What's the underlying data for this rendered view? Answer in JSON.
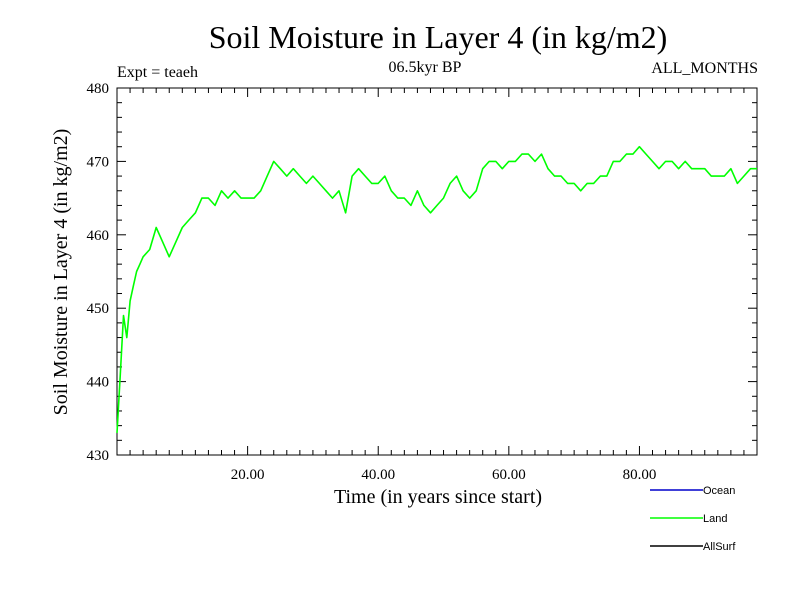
{
  "chart_data": {
    "type": "line",
    "title": "Soil Moisture in Layer 4 (in kg/m2)",
    "subtitle": "06.5kyr BP",
    "experiment_label": "Expt = teaeh",
    "period_label": "ALL_MONTHS",
    "xlabel": "Time (in years since start)",
    "ylabel": "Soil Moisture in Layer 4 (in kg/m2)",
    "xlim": [
      0,
      98
    ],
    "ylim": [
      430,
      480
    ],
    "x_ticks": [
      20,
      40,
      60,
      80
    ],
    "x_tick_labels": [
      "20.00",
      "40.00",
      "60.00",
      "80.00"
    ],
    "y_ticks": [
      430,
      440,
      450,
      460,
      470,
      480
    ],
    "y_tick_labels": [
      "430",
      "440",
      "450",
      "460",
      "470",
      "480"
    ],
    "legend": [
      {
        "name": "Ocean",
        "color": "#0000cc"
      },
      {
        "name": "Land",
        "color": "#00ff00"
      },
      {
        "name": "AllSurf",
        "color": "#000000"
      }
    ],
    "series": [
      {
        "name": "Land",
        "color": "#00ff00",
        "x": [
          0,
          0.5,
          1,
          1.5,
          2,
          2.5,
          3,
          3.5,
          4,
          5,
          6,
          7,
          8,
          9,
          10,
          11,
          12,
          13,
          14,
          15,
          16,
          17,
          18,
          19,
          20,
          21,
          22,
          23,
          24,
          25,
          26,
          27,
          28,
          29,
          30,
          31,
          32,
          33,
          34,
          35,
          36,
          37,
          38,
          39,
          40,
          41,
          42,
          43,
          44,
          45,
          46,
          47,
          48,
          49,
          50,
          51,
          52,
          53,
          54,
          55,
          56,
          57,
          58,
          59,
          60,
          61,
          62,
          63,
          64,
          65,
          66,
          67,
          68,
          69,
          70,
          71,
          72,
          73,
          74,
          75,
          76,
          77,
          78,
          79,
          80,
          81,
          82,
          83,
          84,
          85,
          86,
          87,
          88,
          89,
          90,
          91,
          92,
          93,
          94,
          95,
          96,
          97,
          98
        ],
        "values": [
          433,
          441,
          449,
          446,
          451,
          453,
          455,
          456,
          457,
          458,
          461,
          459,
          457,
          459,
          461,
          462,
          463,
          465,
          465,
          464,
          466,
          465,
          466,
          465,
          465,
          465,
          466,
          468,
          470,
          469,
          468,
          469,
          468,
          467,
          468,
          467,
          466,
          465,
          466,
          463,
          468,
          469,
          468,
          467,
          467,
          468,
          466,
          465,
          465,
          464,
          466,
          464,
          463,
          464,
          465,
          467,
          468,
          466,
          465,
          466,
          469,
          470,
          470,
          469,
          470,
          470,
          471,
          471,
          470,
          471,
          469,
          468,
          468,
          467,
          467,
          466,
          467,
          467,
          468,
          468,
          470,
          470,
          471,
          471,
          472,
          471,
          470,
          469,
          470,
          470,
          469,
          470,
          469,
          469,
          469,
          468,
          468,
          468,
          469,
          467,
          468,
          469,
          469
        ]
      }
    ]
  }
}
